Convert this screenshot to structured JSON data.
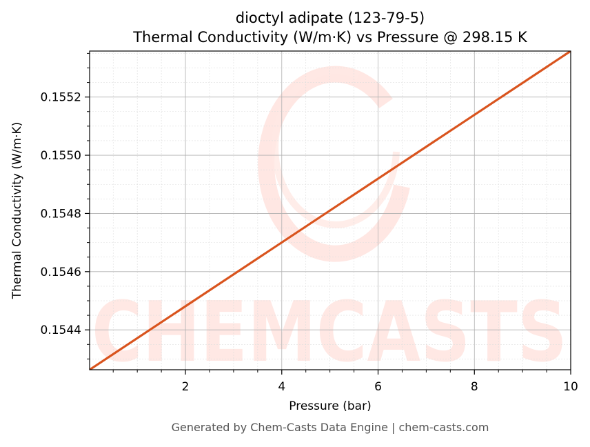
{
  "chart_data": {
    "type": "line",
    "title": "dioctyl adipate (123-79-5)",
    "subtitle": "Thermal Conductivity (W/m·K) vs Pressure @ 298.15 K",
    "xlabel": "Pressure (bar)",
    "ylabel": "Thermal Conductivity (W/m·K)",
    "xlim": [
      0.01,
      10
    ],
    "ylim": [
      0.154263,
      0.155358
    ],
    "x_ticks": [
      2,
      4,
      6,
      8,
      10
    ],
    "x_tick_labels": [
      "2",
      "4",
      "6",
      "8",
      "10"
    ],
    "y_ticks": [
      0.1544,
      0.1546,
      0.1548,
      0.155,
      0.1552
    ],
    "y_tick_labels": [
      "0.1544",
      "0.1546",
      "0.1548",
      "0.1550",
      "0.1552"
    ],
    "grid": true,
    "series": [
      {
        "color": "#d9541e",
        "x": [
          0.01,
          10
        ],
        "y": [
          0.154263,
          0.155358
        ]
      }
    ]
  },
  "watermark": {
    "text": "CHEMCASTS",
    "color": "#ffdcd6"
  },
  "footer": {
    "text": "Generated by Chem-Casts Data Engine | chem-casts.com"
  }
}
